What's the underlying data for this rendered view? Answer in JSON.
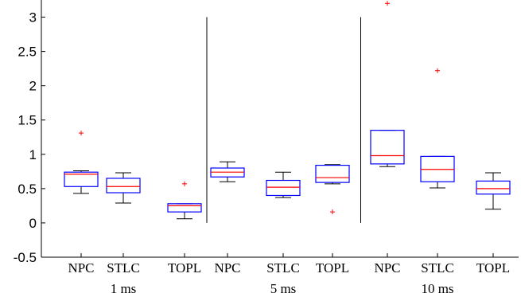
{
  "chart_data": {
    "type": "box",
    "title": "",
    "xlabel": "",
    "ylabel": "",
    "ylim": [
      -0.5,
      3.25
    ],
    "yticks": [
      -0.5,
      0,
      0.5,
      1,
      1.5,
      2,
      2.5,
      3
    ],
    "ytick_labels": [
      "-0.5",
      "0",
      "0.5",
      "1",
      "1.5",
      "2",
      "2.5",
      "3"
    ],
    "grid": false,
    "groups": [
      {
        "label": "1 ms",
        "boxes": [
          {
            "label": "NPC",
            "whisker_low": 0.43,
            "q1": 0.53,
            "median": 0.71,
            "q3": 0.74,
            "whisker_high": 0.76,
            "outliers": [
              1.31
            ]
          },
          {
            "label": "STLC",
            "whisker_low": 0.29,
            "q1": 0.44,
            "median": 0.53,
            "q3": 0.65,
            "whisker_high": 0.73,
            "outliers": []
          },
          {
            "label": "TOPL",
            "whisker_low": 0.06,
            "q1": 0.16,
            "median": 0.25,
            "q3": 0.28,
            "whisker_high": 0.28,
            "outliers": [
              0.57
            ]
          }
        ]
      },
      {
        "label": "5 ms",
        "boxes": [
          {
            "label": "NPC",
            "whisker_low": 0.6,
            "q1": 0.67,
            "median": 0.74,
            "q3": 0.8,
            "whisker_high": 0.89,
            "outliers": []
          },
          {
            "label": "STLC",
            "whisker_low": 0.37,
            "q1": 0.4,
            "median": 0.52,
            "q3": 0.62,
            "whisker_high": 0.74,
            "outliers": []
          },
          {
            "label": "TOPL",
            "whisker_low": 0.57,
            "q1": 0.59,
            "median": 0.66,
            "q3": 0.84,
            "whisker_high": 0.85,
            "outliers": [
              0.16
            ]
          }
        ]
      },
      {
        "label": "10 ms",
        "boxes": [
          {
            "label": "NPC",
            "whisker_low": 0.82,
            "q1": 0.86,
            "median": 0.98,
            "q3": 1.35,
            "whisker_high": 1.35,
            "outliers": [
              3.2
            ]
          },
          {
            "label": "STLC",
            "whisker_low": 0.51,
            "q1": 0.6,
            "median": 0.78,
            "q3": 0.97,
            "whisker_high": 0.97,
            "outliers": [
              2.22
            ]
          },
          {
            "label": "TOPL",
            "whisker_low": 0.2,
            "q1": 0.42,
            "median": 0.5,
            "q3": 0.61,
            "whisker_high": 0.73,
            "outliers": []
          }
        ]
      }
    ]
  },
  "colors": {
    "box": "#0000ff",
    "median": "#ff0000",
    "outlier": "#ff0000",
    "whisker": "#000000",
    "axis": "#000000",
    "separator": "#000000"
  }
}
